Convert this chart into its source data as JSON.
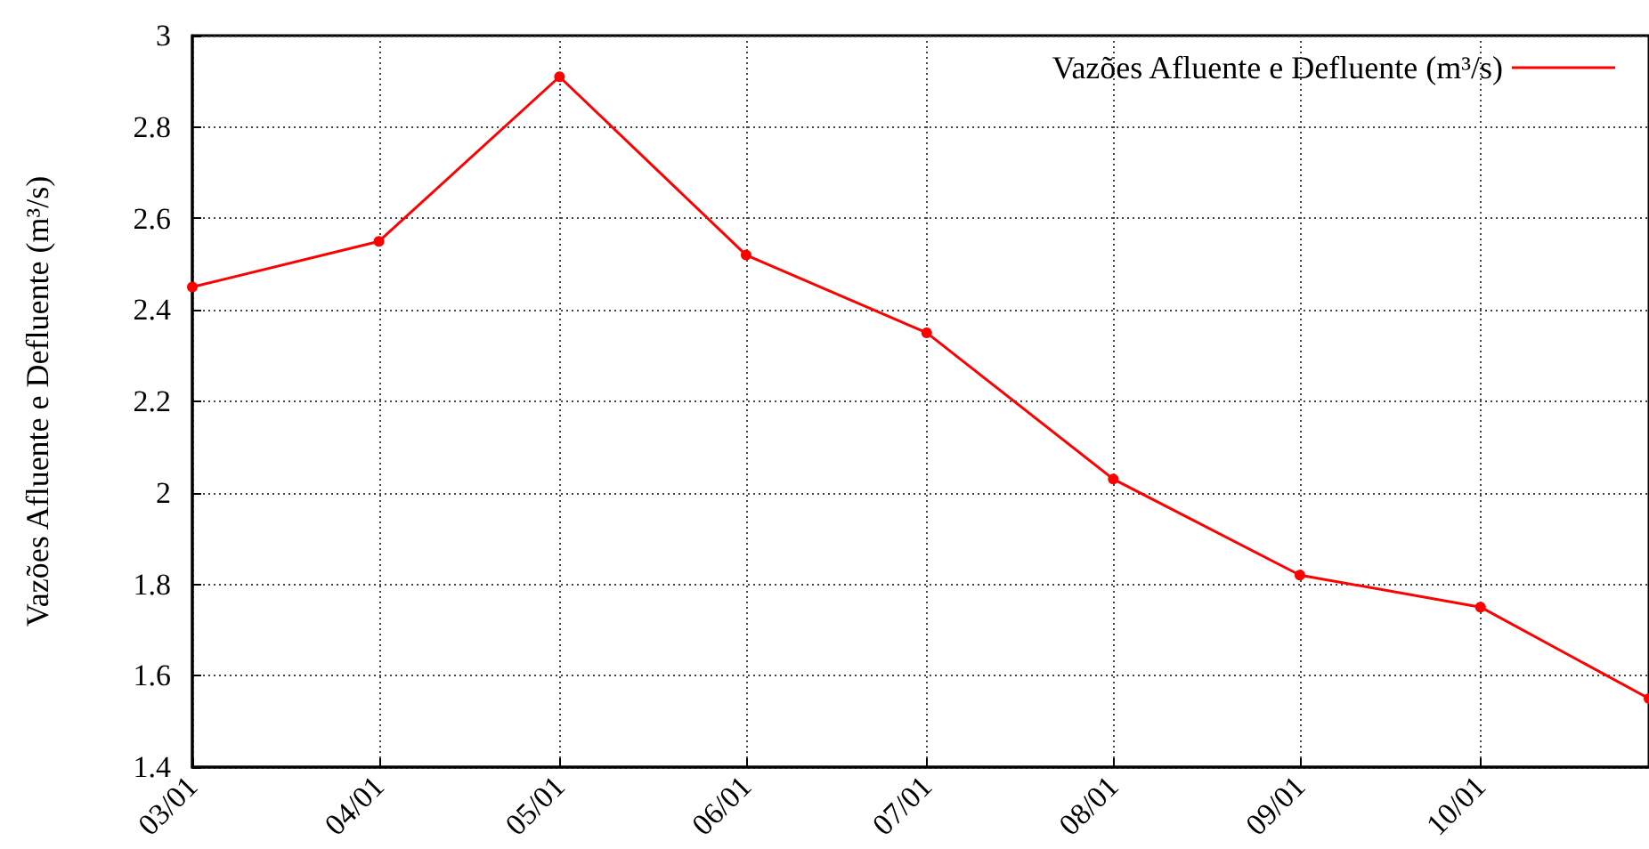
{
  "chart_data": {
    "type": "line",
    "ylabel": "Vazões Afluente e Defluente (m³/s)",
    "x": [
      "--03-01",
      "--04-01",
      "--05-01",
      "--06-01",
      "--07-01",
      "--08-01",
      "--09-01",
      "--10-01",
      "--10-29"
    ],
    "series": [
      {
        "name": "Vazões Afluente e Defluente (m³/s)",
        "color": "#ff0000",
        "values": [
          2.45,
          2.55,
          2.91,
          2.52,
          2.35,
          2.03,
          1.82,
          1.75,
          1.55
        ]
      }
    ],
    "xlim": [
      "--03-01",
      "--10-29"
    ],
    "xticks": [
      {
        "value": "--03-01",
        "label": "03/01"
      },
      {
        "value": "--04-01",
        "label": "04/01"
      },
      {
        "value": "--05-01",
        "label": "05/01"
      },
      {
        "value": "--06-01",
        "label": "06/01"
      },
      {
        "value": "--07-01",
        "label": "07/01"
      },
      {
        "value": "--08-01",
        "label": "08/01"
      },
      {
        "value": "--09-01",
        "label": "09/01"
      },
      {
        "value": "--10-01",
        "label": "10/01"
      }
    ],
    "ylim": [
      1.4,
      3
    ],
    "yticks": [
      1.4,
      1.6,
      1.8,
      2,
      2.2,
      2.4,
      2.6,
      2.8,
      3
    ],
    "grid": true,
    "legend": "top right",
    "marker": "circle",
    "line_style": "solid"
  }
}
